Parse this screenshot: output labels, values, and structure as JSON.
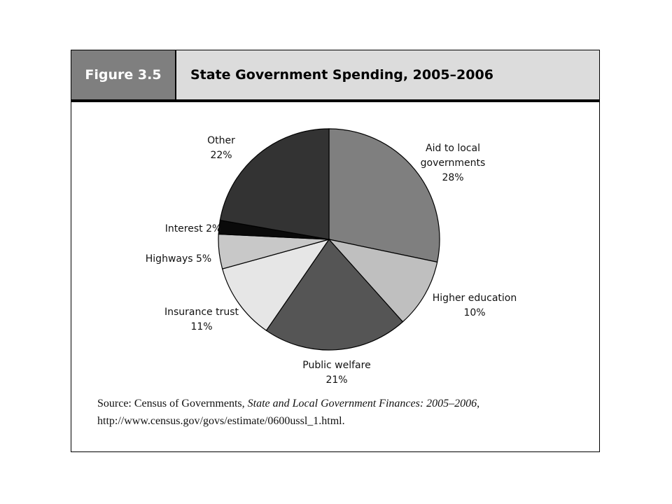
{
  "figure": {
    "label": "Figure 3.5",
    "title": "State Government Spending, 2005–2006"
  },
  "source": {
    "prefix": "Source: Census of Governments, ",
    "italic": "State and Local Government Finances: 2005–2006",
    "suffix": ", http://www.census.gov/govs/estimate/0600ussl_1.html."
  },
  "chart_data": {
    "type": "pie",
    "title": "State Government Spending, 2005–2006",
    "slices": [
      {
        "lines": [
          "Aid to local",
          "governments",
          "28%"
        ],
        "value": 28,
        "color": "#7f7f7f"
      },
      {
        "lines": [
          "Higher education",
          "10%"
        ],
        "value": 10,
        "color": "#bfbfbf"
      },
      {
        "lines": [
          "Public welfare",
          "21%"
        ],
        "value": 21,
        "color": "#555555"
      },
      {
        "lines": [
          "Insurance trust",
          "11%"
        ],
        "value": 11,
        "color": "#e6e6e6"
      },
      {
        "lines": [
          "Highways  5%"
        ],
        "value": 5,
        "color": "#c8c8c8"
      },
      {
        "lines": [
          "Interest  2%"
        ],
        "value": 2,
        "color": "#0a0a0a"
      },
      {
        "lines": [
          "Other",
          "22%"
        ],
        "value": 22,
        "color": "#333333"
      }
    ]
  }
}
